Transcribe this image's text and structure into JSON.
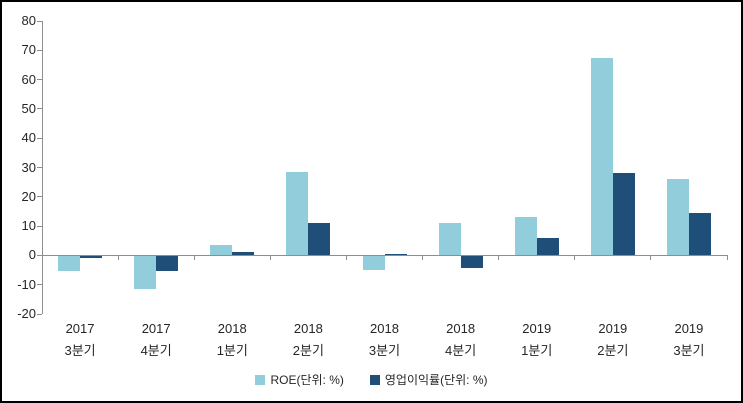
{
  "chart_data": {
    "type": "bar",
    "title": "",
    "xlabel": "",
    "ylabel": "",
    "categories": [
      [
        "2017",
        "3분기"
      ],
      [
        "2017",
        "4분기"
      ],
      [
        "2018",
        "1분기"
      ],
      [
        "2018",
        "2분기"
      ],
      [
        "2018",
        "3분기"
      ],
      [
        "2018",
        "4분기"
      ],
      [
        "2019",
        "1분기"
      ],
      [
        "2019",
        "2분기"
      ],
      [
        "2019",
        "3분기"
      ]
    ],
    "series": [
      {
        "name": "ROE(단위: %)",
        "color": "#92CDDC",
        "values": [
          -5,
          -11,
          3.5,
          28.5,
          -4.5,
          11,
          13,
          67.5,
          26
        ]
      },
      {
        "name": "영업이익률(단위: %)",
        "color": "#1F4E79",
        "values": [
          -0.5,
          -5,
          1,
          11,
          0.5,
          -4,
          6,
          28,
          14.5
        ]
      }
    ],
    "ylim": [
      -20,
      80
    ],
    "ytick_step": 10,
    "grid": false,
    "legend_position": "bottom"
  },
  "colors": {
    "axis": "#8E8E8E",
    "text": "#262626",
    "background": "#FFFFFF",
    "border": "#000000"
  }
}
